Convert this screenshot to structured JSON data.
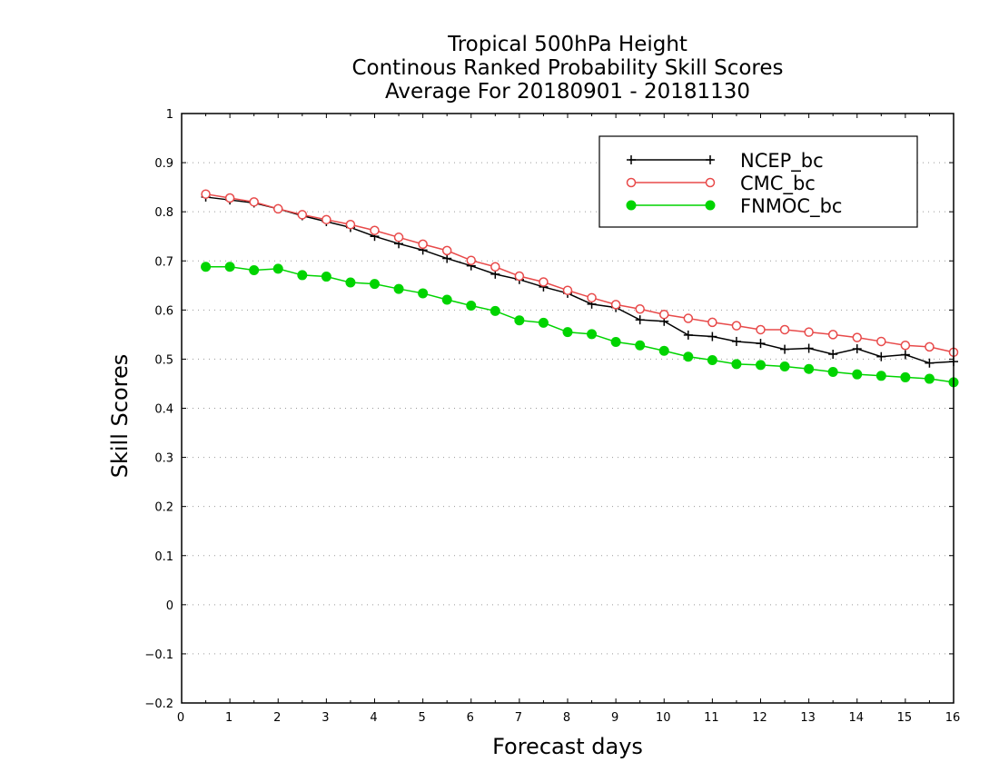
{
  "chart_data": {
    "type": "line",
    "title": [
      "Tropical 500hPa Height",
      "Continous Ranked Probability Skill Scores",
      "Average For 20180901 - 20181130"
    ],
    "xlabel": "Forecast days",
    "ylabel": "Skill Scores",
    "xlim": [
      0,
      16
    ],
    "ylim": [
      -0.2,
      1
    ],
    "xticks": [
      0,
      1,
      2,
      3,
      4,
      5,
      6,
      7,
      8,
      9,
      10,
      11,
      12,
      13,
      14,
      15,
      16
    ],
    "yticks": [
      -0.2,
      -0.1,
      0,
      0.1,
      0.2,
      0.3,
      0.4,
      0.5,
      0.6,
      0.7,
      0.8,
      0.9,
      1
    ],
    "grid": "horizontal dotted",
    "legend_position": "top-right",
    "x": [
      0.5,
      1,
      1.5,
      2,
      2.5,
      3,
      3.5,
      4,
      4.5,
      5,
      5.5,
      6,
      6.5,
      7,
      7.5,
      8,
      8.5,
      9,
      9.5,
      10,
      10.5,
      11,
      11.5,
      12,
      12.5,
      13,
      13.5,
      14,
      14.5,
      15,
      15.5,
      16
    ],
    "series": [
      {
        "name": "NCEP_bc",
        "color": "#000000",
        "marker": "plus",
        "values": [
          0.83,
          0.824,
          0.818,
          0.806,
          0.792,
          0.78,
          0.768,
          0.75,
          0.735,
          0.722,
          0.705,
          0.69,
          0.673,
          0.662,
          0.647,
          0.634,
          0.612,
          0.605,
          0.58,
          0.577,
          0.549,
          0.546,
          0.536,
          0.532,
          0.52,
          0.522,
          0.51,
          0.521,
          0.505,
          0.509,
          0.492,
          0.495
        ]
      },
      {
        "name": "CMC_bc",
        "color": "#e84a4a",
        "marker": "open-circle",
        "values": [
          0.836,
          0.828,
          0.82,
          0.806,
          0.794,
          0.784,
          0.774,
          0.762,
          0.748,
          0.734,
          0.721,
          0.701,
          0.688,
          0.669,
          0.657,
          0.64,
          0.625,
          0.611,
          0.602,
          0.591,
          0.583,
          0.575,
          0.568,
          0.56,
          0.56,
          0.555,
          0.55,
          0.544,
          0.536,
          0.528,
          0.525,
          0.514
        ]
      },
      {
        "name": "FNMOC_bc",
        "color": "#00d400",
        "marker": "filled-circle",
        "values": [
          0.688,
          0.688,
          0.681,
          0.684,
          0.671,
          0.668,
          0.656,
          0.653,
          0.643,
          0.634,
          0.621,
          0.609,
          0.598,
          0.579,
          0.574,
          0.555,
          0.551,
          0.535,
          0.528,
          0.517,
          0.505,
          0.498,
          0.49,
          0.488,
          0.485,
          0.48,
          0.474,
          0.469,
          0.466,
          0.463,
          0.46,
          0.453
        ]
      }
    ]
  }
}
